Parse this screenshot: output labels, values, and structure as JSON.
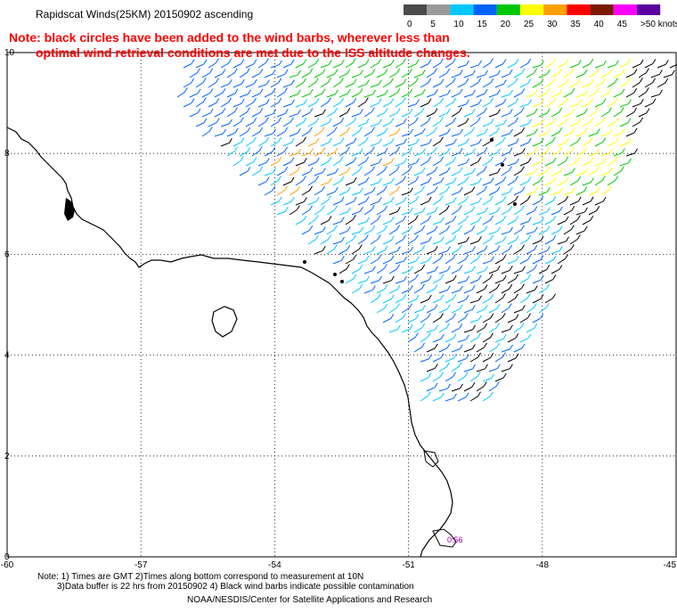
{
  "header": {
    "title": "Rapidscat Winds(25KM) 20150902 ascending",
    "note_line1": "Note: black circles have been added to the wind barbs, wherever less than",
    "note_line2": "optimal wind retrieval conditions are met due to the ISS altitude changes."
  },
  "color_scale": {
    "labels": [
      "0",
      "5",
      "10",
      "15",
      "20",
      "25",
      "30",
      "35",
      "40",
      "45",
      ">50 knots"
    ],
    "colors": [
      "#4b4b4b",
      "#9a9a9a",
      "#00c8ff",
      "#0064ff",
      "#00c800",
      "#ffff00",
      "#ffa000",
      "#ff0000",
      "#7a1a00",
      "#ff00ff",
      "#5a00a0"
    ]
  },
  "chart_data": {
    "type": "wind-barb map",
    "x_ticks": [
      "-60",
      "-57",
      "-54",
      "-51",
      "-48",
      "-45"
    ],
    "y_ticks": [
      "0",
      "2",
      "4",
      "6",
      "8",
      "10"
    ],
    "xlim": [
      -60,
      -45
    ],
    "ylim": [
      0,
      10
    ],
    "grid": true,
    "annotation": "0:56"
  },
  "footer": {
    "line1": "Note: 1) Times are GMT 2)Times along bottom correspond to measurement at 10N",
    "line2": "3)Data buffer is 22 hrs from 20150902 4) Black wind barbs indicate possible contamination",
    "line3": "NOAA/NESDIS/Center for Satellite Applications and Research"
  }
}
